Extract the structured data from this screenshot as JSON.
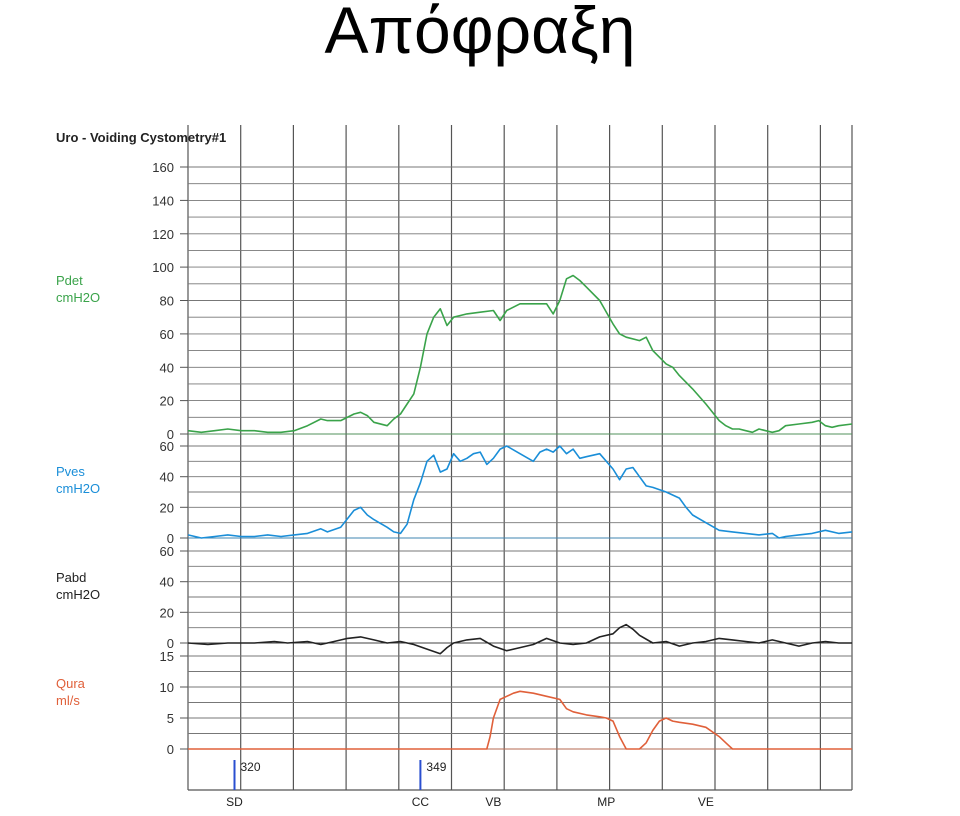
{
  "slide_title": "Απόφραξη",
  "chart_data": {
    "type": "line",
    "title": "Uro - Voiding Cystometry#1",
    "channels": [
      {
        "key": "pdet",
        "label_line1": "Pdet",
        "label_line2": "cmH2O",
        "color": "#3aa34a",
        "ticks": [
          0,
          20,
          40,
          60,
          80,
          100,
          120,
          140,
          160
        ],
        "range": [
          0,
          160
        ],
        "points": [
          [
            0,
            2
          ],
          [
            2,
            1
          ],
          [
            4,
            2
          ],
          [
            6,
            3
          ],
          [
            8,
            2
          ],
          [
            10,
            2
          ],
          [
            12,
            1
          ],
          [
            14,
            1
          ],
          [
            16,
            2
          ],
          [
            18,
            5
          ],
          [
            20,
            9
          ],
          [
            21,
            8
          ],
          [
            23,
            8
          ],
          [
            25,
            12
          ],
          [
            26,
            13
          ],
          [
            27,
            11
          ],
          [
            28,
            7
          ],
          [
            30,
            5
          ],
          [
            31,
            9
          ],
          [
            32,
            12
          ],
          [
            33,
            18
          ],
          [
            34,
            24
          ],
          [
            35,
            40
          ],
          [
            36,
            60
          ],
          [
            37,
            70
          ],
          [
            38,
            75
          ],
          [
            39,
            65
          ],
          [
            40,
            70
          ],
          [
            42,
            72
          ],
          [
            44,
            73
          ],
          [
            46,
            74
          ],
          [
            47,
            68
          ],
          [
            48,
            74
          ],
          [
            50,
            78
          ],
          [
            52,
            78
          ],
          [
            54,
            78
          ],
          [
            55,
            72
          ],
          [
            56,
            80
          ],
          [
            57,
            93
          ],
          [
            58,
            95
          ],
          [
            59,
            92
          ],
          [
            60,
            88
          ],
          [
            62,
            80
          ],
          [
            64,
            66
          ],
          [
            65,
            60
          ],
          [
            66,
            58
          ],
          [
            68,
            56
          ],
          [
            69,
            58
          ],
          [
            70,
            50
          ],
          [
            72,
            42
          ],
          [
            73,
            40
          ],
          [
            74,
            35
          ],
          [
            76,
            27
          ],
          [
            78,
            18
          ],
          [
            80,
            8
          ],
          [
            81,
            5
          ],
          [
            82,
            3
          ],
          [
            83,
            3
          ],
          [
            84,
            2
          ],
          [
            85,
            1
          ],
          [
            86,
            3
          ],
          [
            87,
            2
          ],
          [
            88,
            1
          ],
          [
            89,
            2
          ],
          [
            90,
            5
          ],
          [
            92,
            6
          ],
          [
            94,
            7
          ],
          [
            95,
            8
          ],
          [
            96,
            5
          ],
          [
            97,
            4
          ],
          [
            98,
            5
          ],
          [
            100,
            6
          ]
        ]
      },
      {
        "key": "pves",
        "label_line1": "Pves",
        "label_line2": "cmH2O",
        "color": "#1a8ed8",
        "ticks": [
          0,
          20,
          40,
          60
        ],
        "range": [
          0,
          60
        ],
        "points": [
          [
            0,
            2
          ],
          [
            2,
            0
          ],
          [
            4,
            1
          ],
          [
            6,
            2
          ],
          [
            8,
            1
          ],
          [
            10,
            1
          ],
          [
            12,
            2
          ],
          [
            14,
            1
          ],
          [
            16,
            2
          ],
          [
            18,
            3
          ],
          [
            20,
            6
          ],
          [
            21,
            4
          ],
          [
            23,
            7
          ],
          [
            25,
            18
          ],
          [
            26,
            20
          ],
          [
            27,
            15
          ],
          [
            28,
            12
          ],
          [
            30,
            7
          ],
          [
            31,
            4
          ],
          [
            32,
            3
          ],
          [
            33,
            9
          ],
          [
            34,
            25
          ],
          [
            35,
            36
          ],
          [
            36,
            50
          ],
          [
            37,
            54
          ],
          [
            38,
            43
          ],
          [
            39,
            45
          ],
          [
            40,
            55
          ],
          [
            41,
            50
          ],
          [
            42,
            52
          ],
          [
            43,
            55
          ],
          [
            44,
            56
          ],
          [
            45,
            48
          ],
          [
            46,
            52
          ],
          [
            47,
            58
          ],
          [
            48,
            60
          ],
          [
            50,
            55
          ],
          [
            52,
            50
          ],
          [
            53,
            56
          ],
          [
            54,
            58
          ],
          [
            55,
            56
          ],
          [
            56,
            60
          ],
          [
            57,
            55
          ],
          [
            58,
            58
          ],
          [
            59,
            52
          ],
          [
            60,
            53
          ],
          [
            62,
            55
          ],
          [
            64,
            45
          ],
          [
            65,
            38
          ],
          [
            66,
            45
          ],
          [
            67,
            46
          ],
          [
            68,
            40
          ],
          [
            69,
            34
          ],
          [
            70,
            33
          ],
          [
            72,
            30
          ],
          [
            74,
            26
          ],
          [
            75,
            20
          ],
          [
            76,
            15
          ],
          [
            78,
            10
          ],
          [
            80,
            5
          ],
          [
            82,
            4
          ],
          [
            84,
            3
          ],
          [
            86,
            2
          ],
          [
            88,
            3
          ],
          [
            89,
            0
          ],
          [
            90,
            1
          ],
          [
            92,
            2
          ],
          [
            94,
            3
          ],
          [
            96,
            5
          ],
          [
            98,
            3
          ],
          [
            100,
            4
          ]
        ]
      },
      {
        "key": "pabd",
        "label_line1": "Pabd",
        "label_line2": "cmH2O",
        "color": "#222222",
        "ticks": [
          0,
          20,
          40,
          60
        ],
        "range": [
          0,
          60
        ],
        "points": [
          [
            0,
            0
          ],
          [
            3,
            -1
          ],
          [
            6,
            0
          ],
          [
            10,
            0
          ],
          [
            13,
            1
          ],
          [
            15,
            0
          ],
          [
            18,
            1
          ],
          [
            20,
            -1
          ],
          [
            22,
            1
          ],
          [
            24,
            3
          ],
          [
            26,
            4
          ],
          [
            28,
            2
          ],
          [
            30,
            0
          ],
          [
            32,
            1
          ],
          [
            34,
            -1
          ],
          [
            36,
            -4
          ],
          [
            38,
            -7
          ],
          [
            39,
            -3
          ],
          [
            40,
            0
          ],
          [
            42,
            2
          ],
          [
            44,
            3
          ],
          [
            46,
            -2
          ],
          [
            48,
            -5
          ],
          [
            50,
            -3
          ],
          [
            52,
            -1
          ],
          [
            54,
            3
          ],
          [
            56,
            0
          ],
          [
            58,
            -1
          ],
          [
            60,
            0
          ],
          [
            62,
            4
          ],
          [
            64,
            6
          ],
          [
            65,
            10
          ],
          [
            66,
            12
          ],
          [
            67,
            9
          ],
          [
            68,
            5
          ],
          [
            70,
            0
          ],
          [
            72,
            1
          ],
          [
            74,
            -2
          ],
          [
            76,
            0
          ],
          [
            78,
            1
          ],
          [
            80,
            3
          ],
          [
            82,
            2
          ],
          [
            84,
            1
          ],
          [
            86,
            0
          ],
          [
            88,
            2
          ],
          [
            90,
            0
          ],
          [
            92,
            -2
          ],
          [
            94,
            0
          ],
          [
            96,
            1
          ],
          [
            98,
            0
          ],
          [
            100,
            0
          ]
        ]
      },
      {
        "key": "qura",
        "label_line1": "Qura",
        "label_line2": "ml/s",
        "color": "#e0603a",
        "ticks": [
          0,
          5,
          10,
          15
        ],
        "range": [
          0,
          15
        ],
        "points": [
          [
            0,
            0
          ],
          [
            45,
            0
          ],
          [
            45.5,
            2
          ],
          [
            46,
            5
          ],
          [
            47,
            8
          ],
          [
            48,
            8.5
          ],
          [
            49,
            9
          ],
          [
            50,
            9.3
          ],
          [
            52,
            9
          ],
          [
            54,
            8.5
          ],
          [
            56,
            8
          ],
          [
            57,
            6.5
          ],
          [
            58,
            6
          ],
          [
            60,
            5.5
          ],
          [
            62,
            5.2
          ],
          [
            63,
            5
          ],
          [
            64,
            4.5
          ],
          [
            65,
            2
          ],
          [
            66,
            0
          ],
          [
            68,
            0
          ],
          [
            69,
            1
          ],
          [
            70,
            3
          ],
          [
            71,
            4.5
          ],
          [
            72,
            5
          ],
          [
            73,
            4.5
          ],
          [
            74,
            4.3
          ],
          [
            76,
            4
          ],
          [
            78,
            3.5
          ],
          [
            80,
            2
          ],
          [
            81,
            1
          ],
          [
            82,
            0
          ],
          [
            100,
            0
          ]
        ]
      }
    ],
    "events": [
      {
        "label": "SD",
        "x": 7,
        "volume": "320"
      },
      {
        "label": "CC",
        "x": 35,
        "volume": "349"
      },
      {
        "label": "VB",
        "x": 46,
        "volume": ""
      },
      {
        "label": "MP",
        "x": 63,
        "volume": ""
      },
      {
        "label": "VE",
        "x": 78,
        "volume": ""
      }
    ],
    "x_range": [
      0,
      100
    ],
    "grid": true
  }
}
